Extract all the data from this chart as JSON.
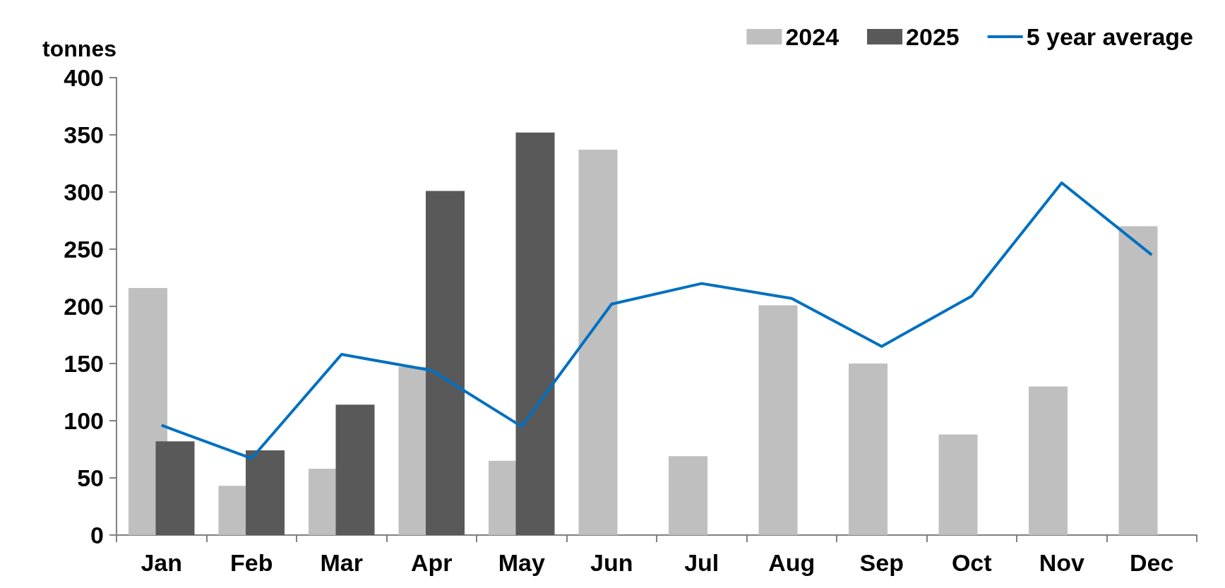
{
  "chart_data": {
    "type": "bar",
    "ylabel": "tonnes",
    "categories": [
      "Jan",
      "Feb",
      "Mar",
      "Apr",
      "May",
      "Jun",
      "Jul",
      "Aug",
      "Sep",
      "Oct",
      "Nov",
      "Dec"
    ],
    "series": [
      {
        "name": "2024",
        "color": "#bfbfbf",
        "values": [
          216,
          43,
          58,
          147,
          65,
          337,
          69,
          201,
          150,
          88,
          130,
          270
        ]
      },
      {
        "name": "2025",
        "color": "#595959",
        "values": [
          82,
          74,
          114,
          301,
          352,
          null,
          null,
          null,
          null,
          null,
          null,
          null
        ]
      },
      {
        "name": "5 year average",
        "type": "line",
        "color": "#0070c0",
        "values": [
          96,
          67,
          158,
          144,
          95,
          202,
          220,
          207,
          165,
          209,
          308,
          245
        ]
      }
    ],
    "ylim": [
      0,
      400
    ],
    "yticks": [
      0,
      50,
      100,
      150,
      200,
      250,
      300,
      350,
      400
    ],
    "grid": false,
    "legend": "top right",
    "marker": "none"
  }
}
